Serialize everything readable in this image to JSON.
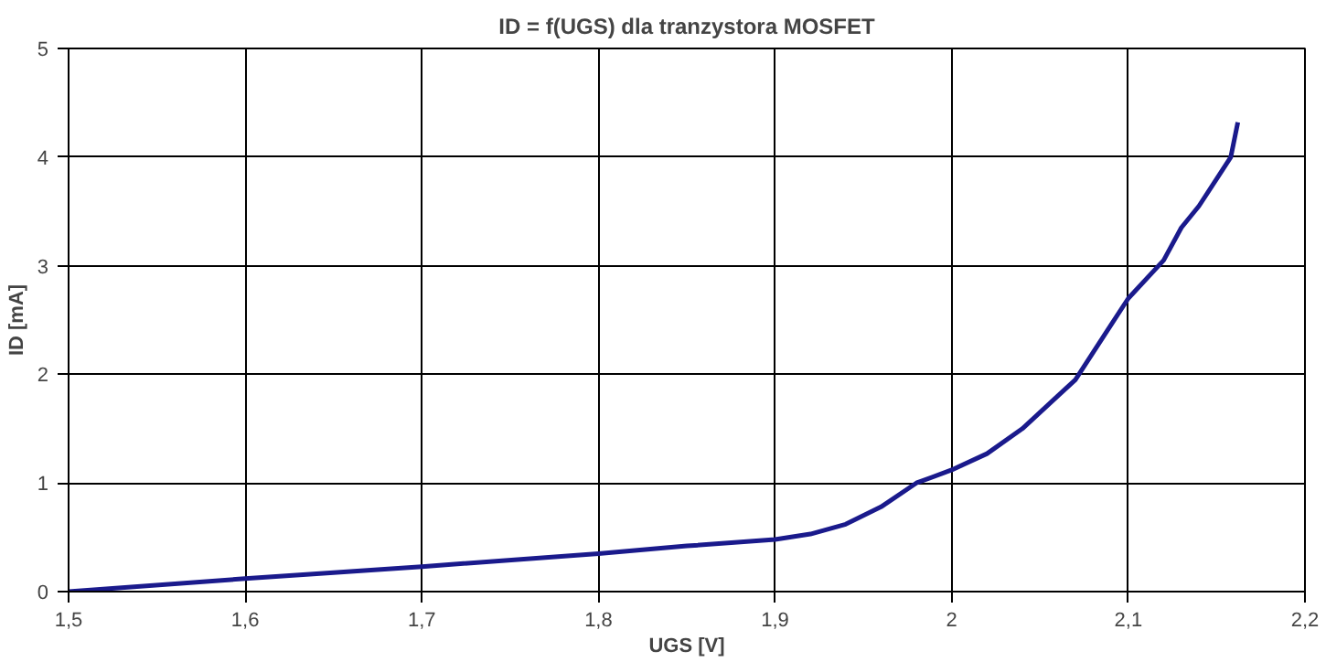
{
  "chart_data": {
    "type": "line",
    "title": "ID = f(UGS) dla tranzystora MOSFET",
    "xlabel": "UGS [V]",
    "ylabel": "ID [mA]",
    "x": [
      1.5,
      1.6,
      1.7,
      1.8,
      1.85,
      1.9,
      1.92,
      1.94,
      1.96,
      1.98,
      2.0,
      2.02,
      2.04,
      2.06,
      2.07,
      2.08,
      2.09,
      2.1,
      2.12,
      2.13,
      2.14,
      2.15,
      2.158,
      2.162
    ],
    "series": [
      {
        "color": "#1a1a8c",
        "values": [
          0.0,
          0.12,
          0.23,
          0.35,
          0.42,
          0.48,
          0.53,
          0.62,
          0.78,
          1.0,
          1.12,
          1.27,
          1.5,
          1.8,
          1.95,
          2.2,
          2.45,
          2.7,
          3.05,
          3.35,
          3.55,
          3.8,
          4.0,
          4.32
        ]
      }
    ],
    "xlim": [
      1.5,
      2.2
    ],
    "ylim": [
      0,
      5
    ],
    "xticks": [
      {
        "value": 1.5,
        "label": "1,5"
      },
      {
        "value": 1.6,
        "label": "1,6"
      },
      {
        "value": 1.7,
        "label": "1,7"
      },
      {
        "value": 1.8,
        "label": "1,8"
      },
      {
        "value": 1.9,
        "label": "1,9"
      },
      2,
      {
        "value": 2.1,
        "label": "2,1"
      },
      {
        "value": 2.2,
        "label": "2,2"
      }
    ],
    "yticks": [
      0,
      1,
      2,
      3,
      4,
      5
    ],
    "grid": true,
    "marker": "none",
    "line_style": "solid"
  }
}
